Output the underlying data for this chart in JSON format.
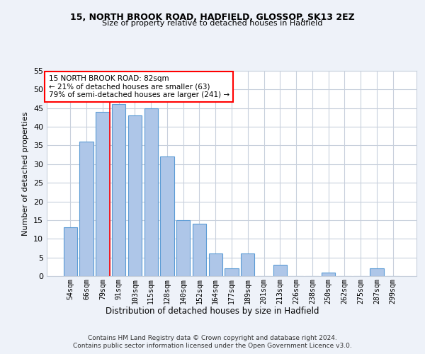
{
  "title1": "15, NORTH BROOK ROAD, HADFIELD, GLOSSOP, SK13 2EZ",
  "title2": "Size of property relative to detached houses in Hadfield",
  "xlabel": "Distribution of detached houses by size in Hadfield",
  "ylabel": "Number of detached properties",
  "footer1": "Contains HM Land Registry data © Crown copyright and database right 2024.",
  "footer2": "Contains public sector information licensed under the Open Government Licence v3.0.",
  "categories": [
    "54sqm",
    "66sqm",
    "79sqm",
    "91sqm",
    "103sqm",
    "115sqm",
    "128sqm",
    "140sqm",
    "152sqm",
    "164sqm",
    "177sqm",
    "189sqm",
    "201sqm",
    "213sqm",
    "226sqm",
    "238sqm",
    "250sqm",
    "262sqm",
    "275sqm",
    "287sqm",
    "299sqm"
  ],
  "values": [
    13,
    36,
    44,
    46,
    43,
    45,
    32,
    15,
    14,
    6,
    2,
    6,
    0,
    3,
    0,
    0,
    1,
    0,
    0,
    2,
    0
  ],
  "bar_color": "#aec6e8",
  "bar_edge_color": "#5b9bd5",
  "vline_x_index": 2,
  "annotation_line1": "15 NORTH BROOK ROAD: 82sqm",
  "annotation_line2": "← 21% of detached houses are smaller (63)",
  "annotation_line3": "79% of semi-detached houses are larger (241) →",
  "annotation_box_color": "white",
  "annotation_box_edge_color": "red",
  "vline_color": "red",
  "ylim": [
    0,
    55
  ],
  "yticks": [
    0,
    5,
    10,
    15,
    20,
    25,
    30,
    35,
    40,
    45,
    50,
    55
  ],
  "bg_color": "#eef2f9",
  "plot_bg_color": "white",
  "grid_color": "#c8d0dc"
}
